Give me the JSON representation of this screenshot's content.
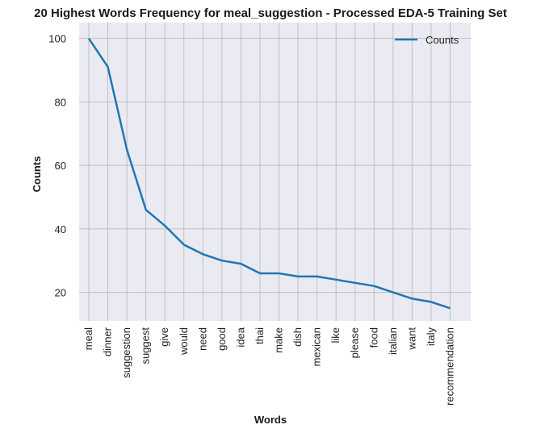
{
  "chart_data": {
    "type": "line",
    "title": "20 Highest Words Frequency for meal_suggestion - Processed EDA-5 Training Set",
    "xlabel": "Words",
    "ylabel": "Counts",
    "categories": [
      "meal",
      "dinner",
      "suggestion",
      "suggest",
      "give",
      "would",
      "need",
      "good",
      "idea",
      "thai",
      "make",
      "dish",
      "mexican",
      "like",
      "please",
      "food",
      "italian",
      "want",
      "italy",
      "recommendation"
    ],
    "series": [
      {
        "name": "Counts",
        "values": [
          100,
          91,
          65,
          46,
          41,
          35,
          32,
          30,
          29,
          26,
          26,
          25,
          25,
          24,
          23,
          22,
          20,
          18,
          17,
          15
        ]
      }
    ],
    "ylim": [
      11,
      105
    ],
    "yticks": [
      20,
      40,
      60,
      80,
      100
    ],
    "grid": true,
    "legend_position": "top-right",
    "colors": {
      "line": "#1f77b4",
      "background": "#eaeaf2",
      "grid": "#c0c0c0"
    }
  }
}
